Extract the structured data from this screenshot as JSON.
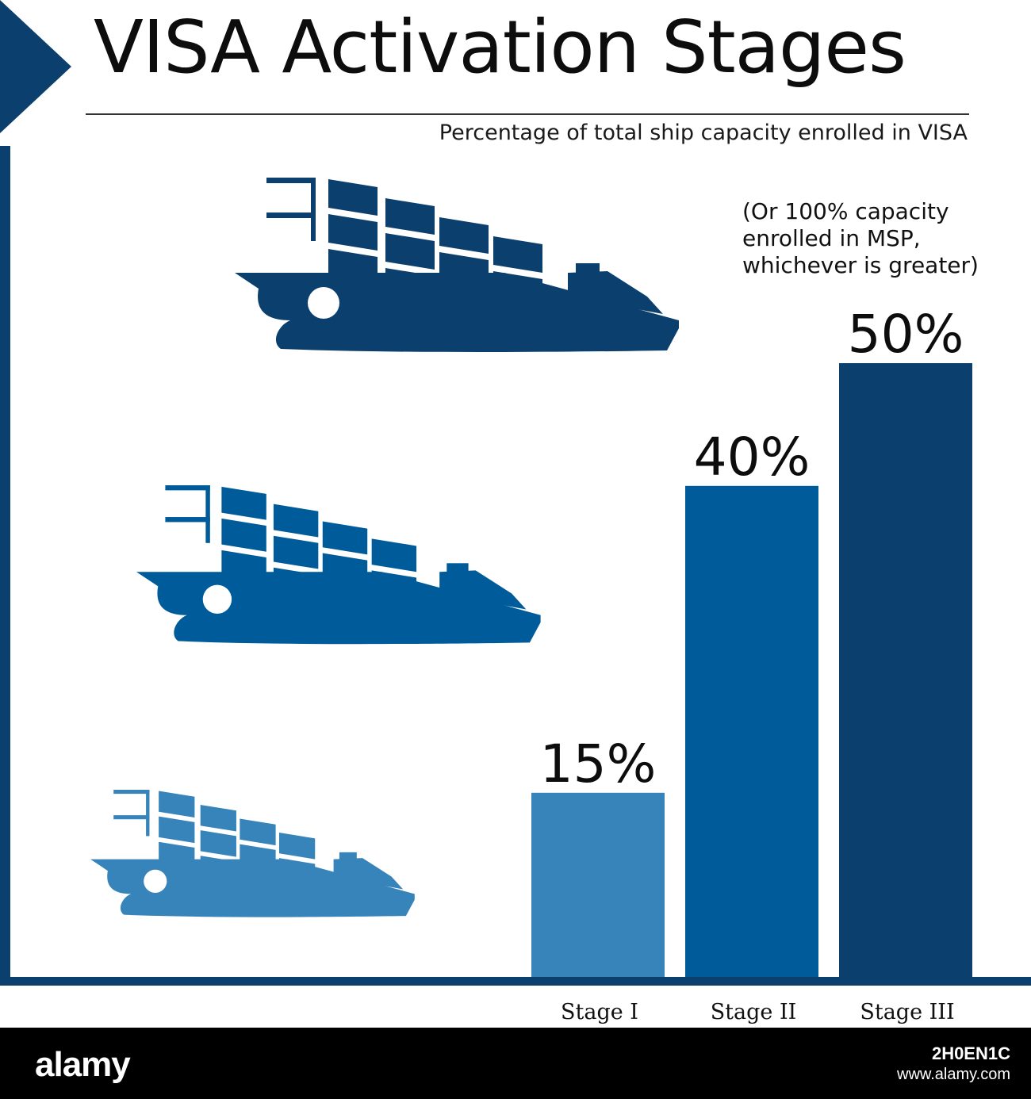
{
  "chart_data": {
    "type": "bar",
    "title": "VISA Activation Stages",
    "subtitle": "Percentage of total ship capacity enrolled in VISA",
    "categories": [
      "Stage I",
      "Stage II",
      "Stage III"
    ],
    "values": [
      15,
      40,
      50
    ],
    "value_labels": [
      "15%",
      "40%",
      "50%"
    ],
    "annotation": "(Or 100% capacity\nenrolled in MSP,\nwhichever is greater)",
    "ylim": [
      0,
      50
    ],
    "grid": false,
    "legend": "none"
  },
  "colors": {
    "stage1": "#3784ba",
    "stage2": "#005b9a",
    "stage3": "#0b3f6e",
    "axis": "#0b3f6e",
    "background": "#ffffff",
    "footer": "#000000"
  },
  "icons": [
    "cargo-ship-icon"
  ],
  "footer": {
    "brand": "alamy",
    "image_id": "2H0EN1C",
    "url": "www.alamy.com"
  }
}
